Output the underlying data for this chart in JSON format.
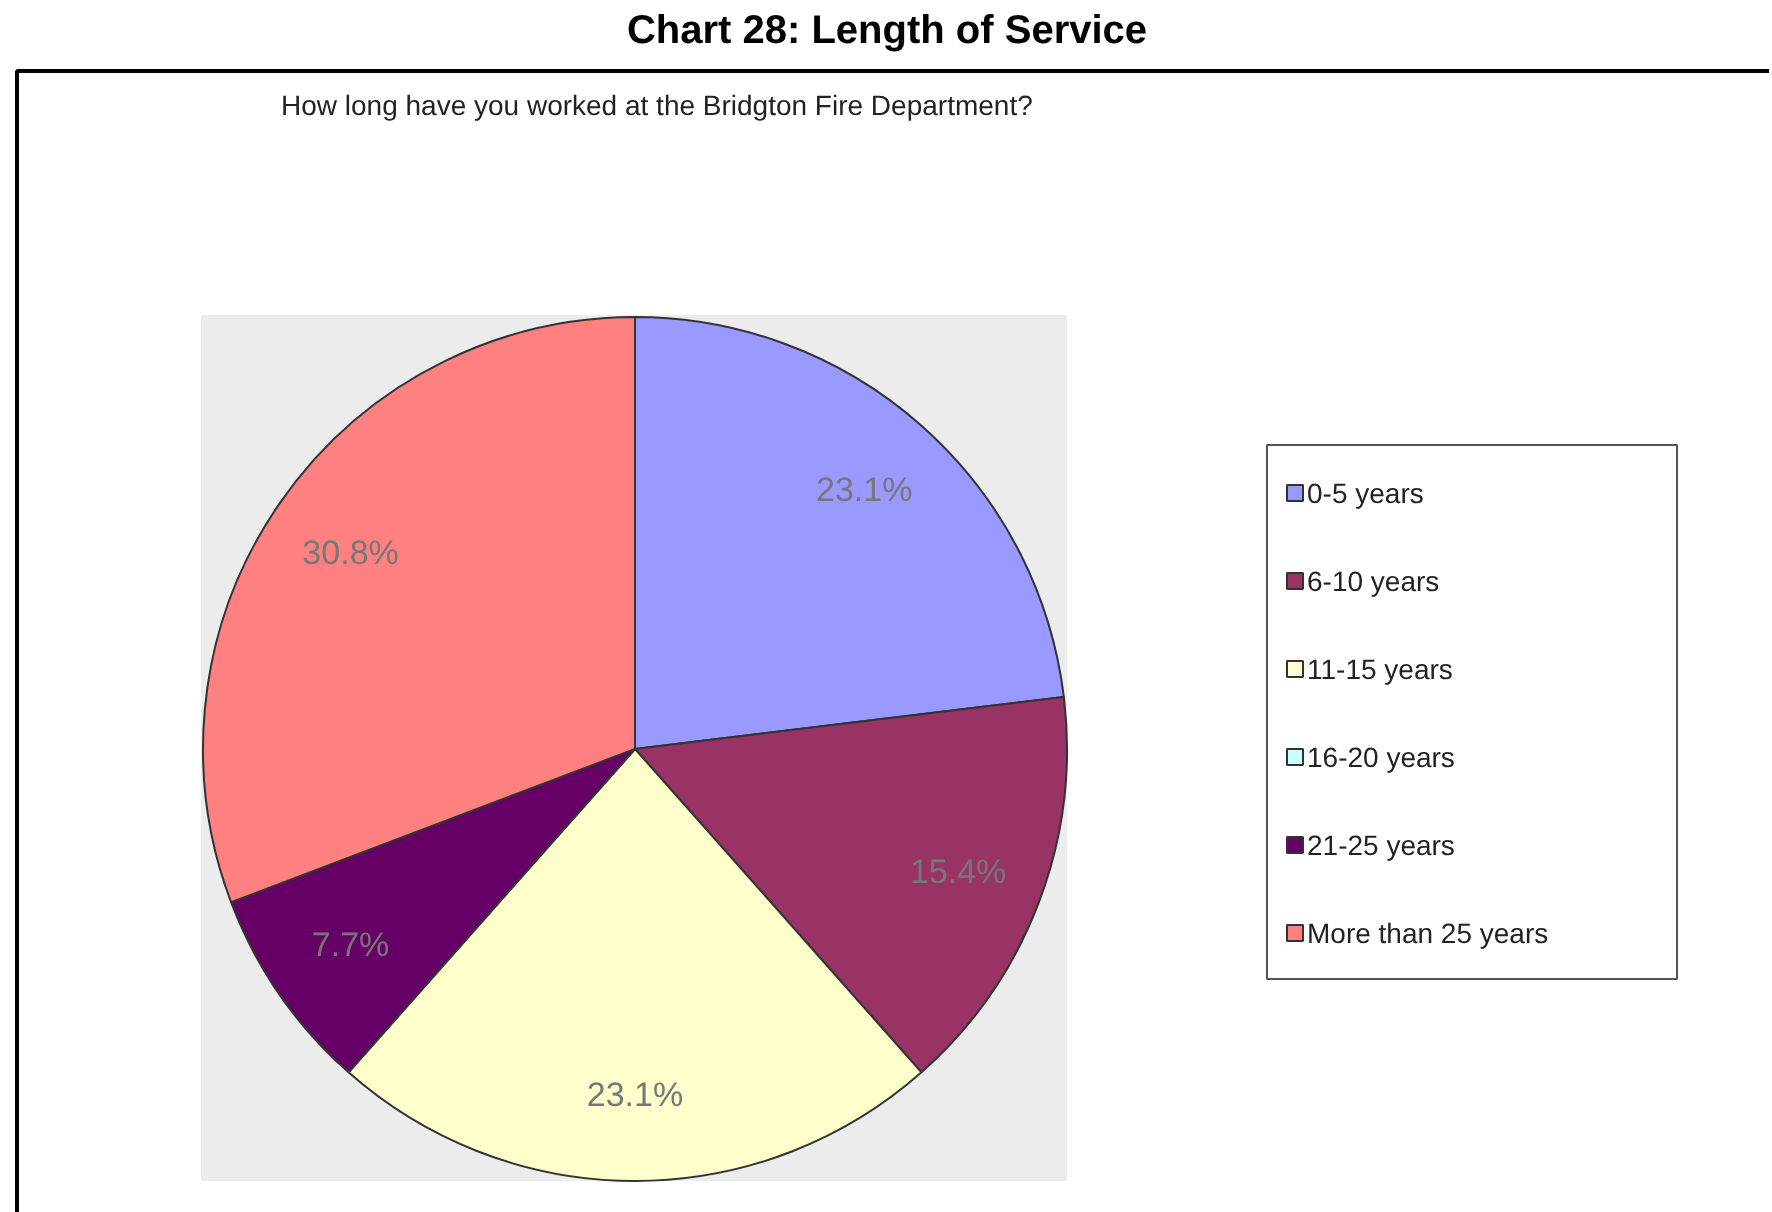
{
  "chart_data": {
    "type": "pie",
    "title": "Chart 28: Length of Service",
    "subtitle": "How long have you worked at the Bridgton Fire Department?",
    "categories": [
      "0-5 years",
      "6-10 years",
      "11-15 years",
      "16-20 years",
      "21-25 years",
      "More than 25 years"
    ],
    "values": [
      23.1,
      15.4,
      23.1,
      0,
      7.7,
      30.8
    ],
    "colors": [
      "#9999ff",
      "#993366",
      "#ffffcc",
      "#ccffff",
      "#660066",
      "#ff8080"
    ],
    "value_labels": [
      "23.1%",
      "15.4%",
      "23.1%",
      null,
      "7.7%",
      "30.8%"
    ],
    "legend": "right"
  }
}
